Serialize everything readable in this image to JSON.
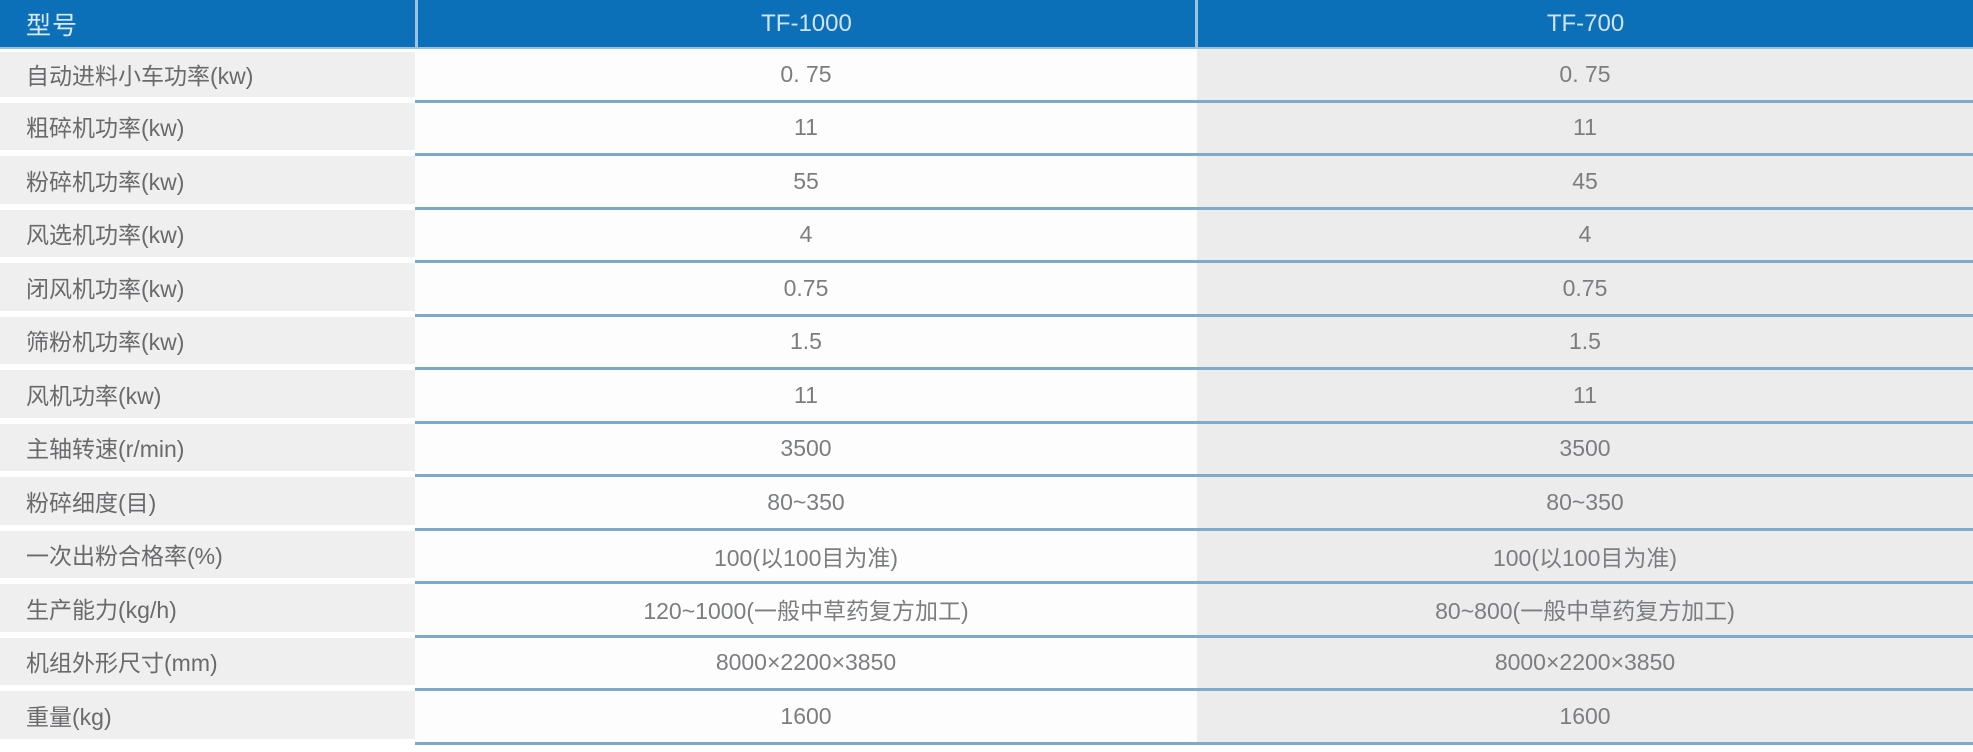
{
  "chart_data": {
    "type": "table",
    "columns": [
      "型号",
      "TF-1000",
      "TF-700"
    ],
    "rows": [
      [
        "自动进料小车功率(kw)",
        "0. 75",
        "0. 75"
      ],
      [
        "粗碎机功率(kw)",
        "11",
        "11"
      ],
      [
        "粉碎机功率(kw)",
        "55",
        "45"
      ],
      [
        "风选机功率(kw)",
        "4",
        "4"
      ],
      [
        "闭风机功率(kw)",
        "0.75",
        "0.75"
      ],
      [
        "筛粉机功率(kw)",
        "1.5",
        "1.5"
      ],
      [
        "风机功率(kw)",
        "11",
        "11"
      ],
      [
        "主轴转速(r/min)",
        "3500",
        "3500"
      ],
      [
        "粉碎细度(目)",
        "80~350",
        "80~350"
      ],
      [
        "一次出粉合格率(%)",
        "100(以100目为准)",
        "100(以100目为准)"
      ],
      [
        "生产能力(kg/h)",
        "120~1000(一般中草药复方加工)",
        "80~800(一般中草药复方加工)"
      ],
      [
        "机组外形尺寸(mm)",
        "8000×2200×3850",
        "8000×2200×3850"
      ],
      [
        "重量(kg)",
        "1600",
        "1600"
      ]
    ]
  },
  "colors": {
    "header_background": "#0c70b8",
    "header_text": "#d5e7f4",
    "header_divider": "#9cc4e0",
    "label_cell_background": "#efefef",
    "tf1000_cell_background": "#fdfdfd",
    "tf700_cell_background": "#ececec",
    "row_separator": "#7ea9c8",
    "label_text": "#696a6c",
    "value_text": "#7b7d80"
  }
}
